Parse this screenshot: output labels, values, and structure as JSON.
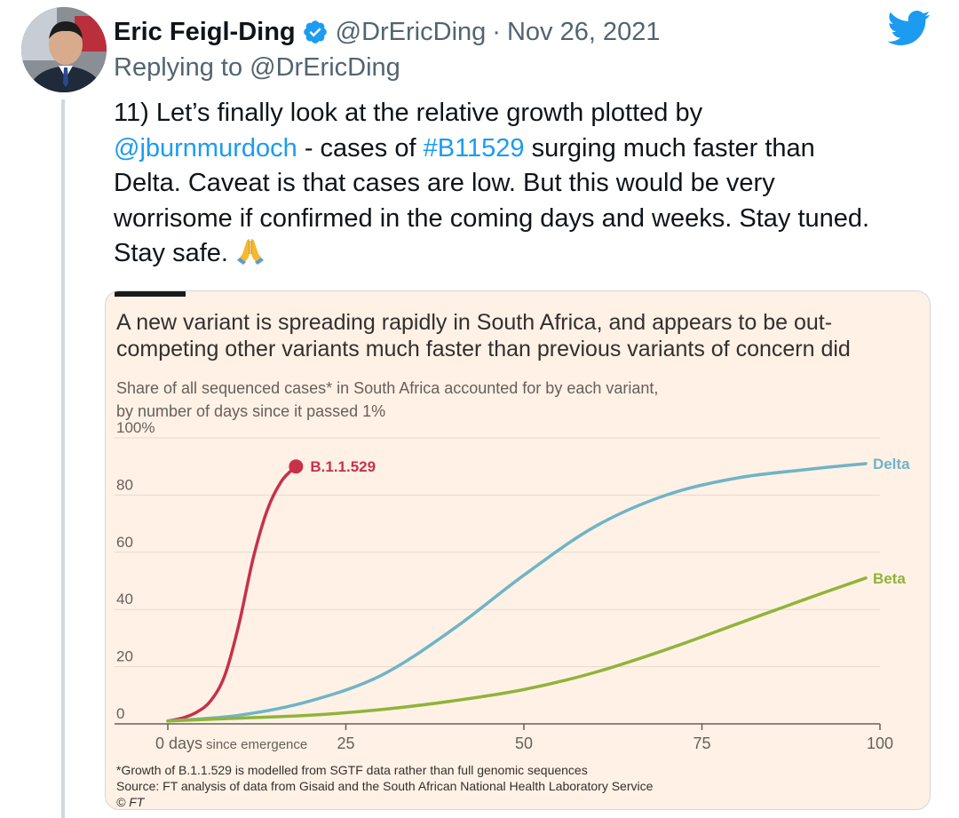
{
  "tweet": {
    "author_name": "Eric Feigl-Ding",
    "handle": "@DrEricDing",
    "separator": "·",
    "date": "Nov 26, 2021",
    "replying_prefix": "Replying to ",
    "replying_to": "@DrEricDing",
    "text": {
      "line1": "11) Let’s finally look at the relative growth plotted by",
      "mention": "@jburnmurdoch",
      "line2_mid": " - cases of ",
      "hashtag": "#B11529",
      "line2_end": " surging much faster than",
      "line3": "Delta. Caveat is that cases are low. But this would be very",
      "line4": "worrisome if confirmed in the coming days and weeks. Stay tuned.",
      "line5": "Stay safe. "
    },
    "emoji": "folded-hands-emoji"
  },
  "colors": {
    "twitter_blue": "#1d9bf0",
    "ft_background": "#fff1e5",
    "b11529": "#c7314a",
    "delta": "#6fb4c6",
    "beta": "#8fb43a"
  },
  "icons": {
    "logo": "twitter-bird-icon",
    "verified": "verified-badge-icon"
  },
  "chart_data": {
    "type": "line",
    "title_line1": "A new variant is spreading rapidly in South Africa, and appears to be out-",
    "title_line2": "competing other variants much faster than previous variants of concern did",
    "subtitle_line1": "Share of all sequenced cases* in South Africa accounted for by each variant,",
    "subtitle_line2": "by number of days since it passed 1%",
    "xlim": [
      0,
      100
    ],
    "ylim": [
      0,
      100
    ],
    "x_ticks": [
      0,
      25,
      50,
      75,
      100
    ],
    "x_tick_labels": [
      "0 days",
      "25",
      "50",
      "75",
      "100"
    ],
    "x_first_tick_suffix": "since emergence",
    "y_ticks": [
      0,
      20,
      40,
      60,
      80,
      100
    ],
    "y_tick_labels": [
      "0",
      "20",
      "40",
      "60",
      "80",
      "100%"
    ],
    "series": [
      {
        "name": "B.1.1.529",
        "x": [
          0,
          2,
          4,
          6,
          8,
          10,
          12,
          14,
          16,
          18
        ],
        "y": [
          1,
          2,
          4,
          8,
          17,
          35,
          58,
          75,
          85,
          90
        ],
        "end_marker": true
      },
      {
        "name": "Delta",
        "x": [
          0,
          10,
          20,
          30,
          40,
          50,
          60,
          70,
          80,
          90,
          98
        ],
        "y": [
          1,
          3,
          8,
          17,
          33,
          52,
          69,
          80,
          86,
          89,
          91
        ]
      },
      {
        "name": "Beta",
        "x": [
          0,
          10,
          20,
          30,
          40,
          50,
          60,
          70,
          80,
          90,
          98
        ],
        "y": [
          1,
          2,
          3,
          5,
          8,
          12,
          18,
          26,
          35,
          44,
          51
        ]
      }
    ],
    "footnote": "*Growth of B.1.1.529 is modelled from SGTF data rather than full genomic sequences",
    "source": "Source: FT analysis of data from Gisaid and the South African National Health Laboratory Service",
    "credit": "© FT"
  }
}
